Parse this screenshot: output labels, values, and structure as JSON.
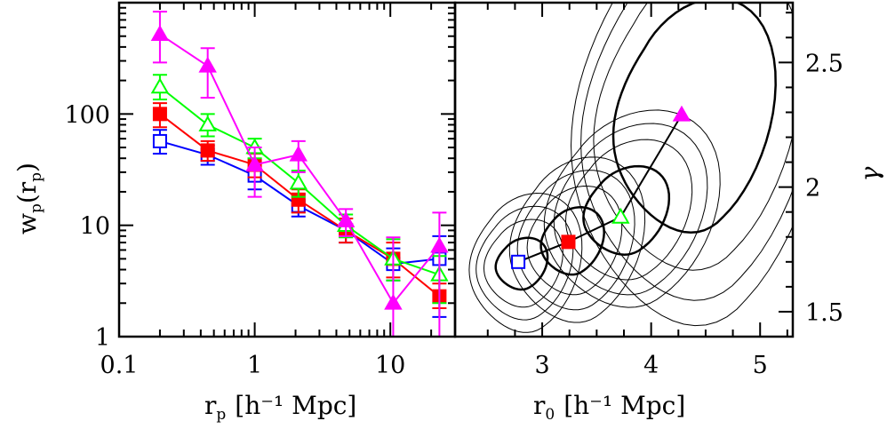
{
  "chart_data": [
    {
      "type": "line",
      "panel": "left",
      "xscale": "log",
      "yscale": "log",
      "xlim": [
        0.1,
        30
      ],
      "ylim": [
        1,
        1000
      ],
      "xlabel": {
        "main": "r",
        "sub": "p",
        "unit": "[h⁻¹ Mpc]"
      },
      "ylabel": {
        "main": "w",
        "sub": "p",
        "arg_open": "(r",
        "arg_sub": "p",
        "arg_close": ")"
      },
      "xticks": [
        0.1,
        1,
        10
      ],
      "xtick_labels": [
        "0.1",
        "1",
        "10"
      ],
      "yticks": [
        1,
        10,
        100
      ],
      "ytick_labels": [
        "1",
        "10",
        "100"
      ],
      "series": [
        {
          "marker": "open-square",
          "color": "#0000ff",
          "x": [
            0.2,
            0.45,
            1.0,
            2.1,
            4.7,
            10.5,
            23
          ],
          "y": [
            57,
            43,
            28,
            15,
            9,
            4.5,
            5
          ],
          "err_lo": [
            44,
            35,
            21,
            12,
            7,
            3.2,
            1.5
          ],
          "err_hi": [
            72,
            52,
            36,
            19,
            11.5,
            6.2,
            8
          ]
        },
        {
          "marker": "filled-square",
          "color": "#ff0000",
          "x": [
            0.2,
            0.45,
            1.0,
            2.1,
            4.7,
            10.5,
            23
          ],
          "y": [
            100,
            47,
            35,
            17,
            9,
            5,
            2.3
          ],
          "err_lo": [
            76,
            38,
            27,
            13,
            7,
            3.4,
            1.8
          ],
          "err_hi": [
            125,
            57,
            44,
            21,
            11.5,
            7,
            3
          ]
        },
        {
          "marker": "open-triangle",
          "color": "#00ff00",
          "x": [
            0.2,
            0.45,
            1.0,
            2.1,
            4.7,
            10.5,
            23
          ],
          "y": [
            175,
            80,
            50,
            24,
            10,
            5,
            3.6
          ],
          "err_lo": [
            135,
            63,
            40,
            18,
            7.8,
            3.2,
            2
          ],
          "err_hi": [
            225,
            100,
            60,
            31,
            12.5,
            7.5,
            5.3
          ]
        },
        {
          "marker": "filled-triangle",
          "color": "#ff00ff",
          "x": [
            0.2,
            0.45,
            1.0,
            2.1,
            4.7,
            10.5,
            23
          ],
          "y": [
            520,
            270,
            35,
            43,
            11,
            2,
            6.5
          ],
          "err_lo": [
            290,
            140,
            18,
            30,
            8,
            1,
            1
          ],
          "err_hi": [
            830,
            390,
            50,
            57,
            14,
            7.8,
            13
          ]
        }
      ]
    },
    {
      "type": "scatter",
      "panel": "right",
      "xlim": [
        2.2,
        5.3
      ],
      "ylim": [
        1.4,
        2.74
      ],
      "xlabel": {
        "main": "r",
        "sub": "0",
        "unit": "[h⁻¹ Mpc]"
      },
      "ylabel": "γ",
      "xticks": [
        3,
        4,
        5
      ],
      "xtick_labels": [
        "3",
        "4",
        "5"
      ],
      "yticks": [
        1.5,
        2,
        2.5
      ],
      "ytick_labels": [
        "1.5",
        "2",
        "2.5"
      ],
      "points": [
        {
          "marker": "open-square",
          "color": "#0000ff",
          "x": 2.78,
          "y": 1.7
        },
        {
          "marker": "filled-square",
          "color": "#ff0000",
          "x": 3.24,
          "y": 1.78
        },
        {
          "marker": "open-triangle",
          "color": "#00ff00",
          "x": 3.72,
          "y": 1.88
        },
        {
          "marker": "filled-triangle",
          "color": "#ff00ff",
          "x": 4.28,
          "y": 2.29
        }
      ],
      "connector_line": {
        "color": "#000000"
      },
      "contours": [
        {
          "cx": 2.78,
          "cy": 1.69,
          "rx": [
            0.23,
            0.35,
            0.43,
            0.5
          ],
          "ry": [
            0.1,
            0.17,
            0.22,
            0.27
          ],
          "tilt": 0.05
        },
        {
          "cx": 3.24,
          "cy": 1.78,
          "rx": [
            0.28,
            0.42,
            0.52,
            0.6
          ],
          "ry": [
            0.13,
            0.21,
            0.27,
            0.32
          ],
          "tilt": 0.06
        },
        {
          "cx": 3.72,
          "cy": 1.9,
          "rx": [
            0.38,
            0.56,
            0.68,
            0.78
          ],
          "ry": [
            0.17,
            0.27,
            0.33,
            0.38
          ],
          "tilt": 0.07
        },
        {
          "cx": 4.3,
          "cy": 2.27,
          "rx": [
            0.72,
            0.92,
            1.05,
            1.15
          ],
          "ry": [
            0.45,
            0.6,
            0.72,
            0.82
          ],
          "tilt": 0.1
        }
      ]
    }
  ]
}
